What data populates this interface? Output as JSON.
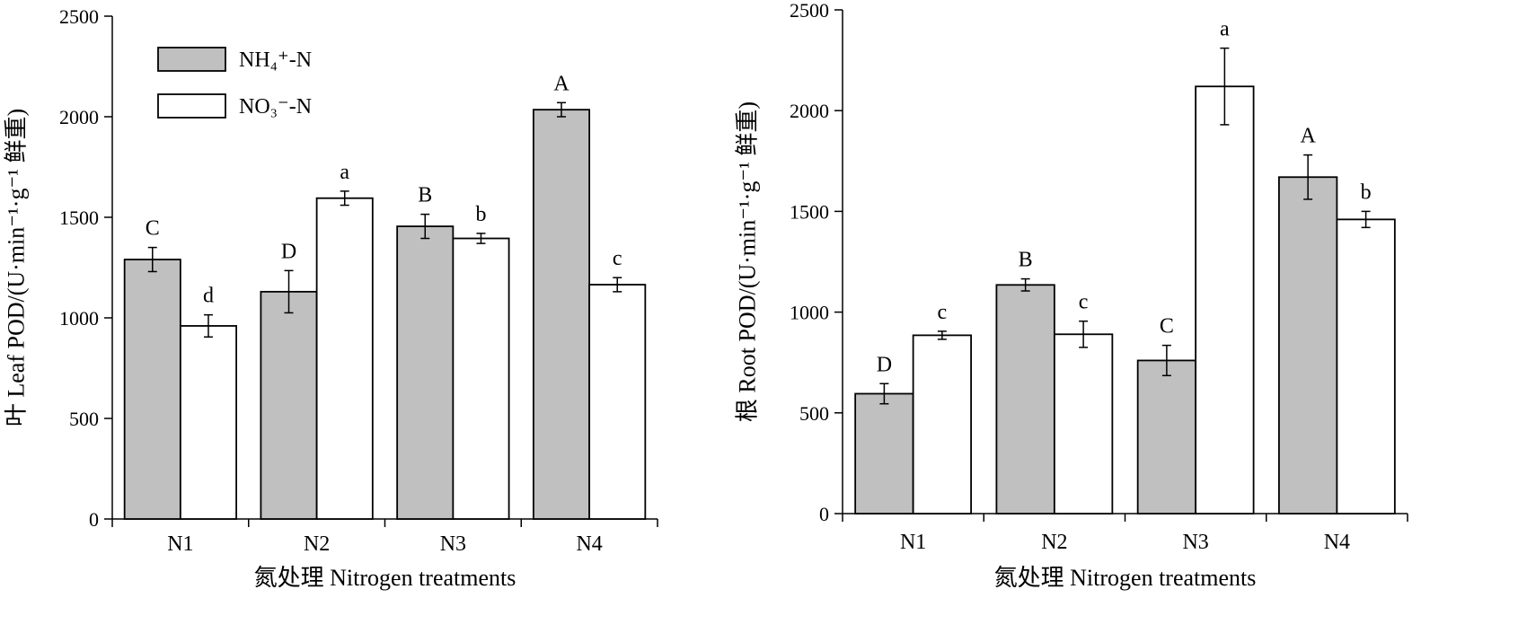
{
  "chart_data": [
    {
      "type": "bar",
      "ylabel": "叶 Leaf POD/(U·min⁻¹·g⁻¹ 鲜重)",
      "xlabel": "氮处理 Nitrogen treatments",
      "ylim": [
        0,
        2500
      ],
      "yticks": [
        0,
        500,
        1000,
        1500,
        2000,
        2500
      ],
      "categories": [
        "N1",
        "N2",
        "N3",
        "N4"
      ],
      "legend_position": "top-left",
      "series": [
        {
          "name": "NH₄⁺-N",
          "color": "#c0c0c0",
          "values": [
            1290,
            1130,
            1455,
            2035
          ],
          "errors": [
            60,
            105,
            60,
            35
          ],
          "labels": [
            "C",
            "D",
            "B",
            "A"
          ]
        },
        {
          "name": "NO₃⁻-N",
          "color": "#ffffff",
          "values": [
            960,
            1595,
            1395,
            1165
          ],
          "errors": [
            55,
            35,
            25,
            35
          ],
          "labels": [
            "d",
            "a",
            "b",
            "c"
          ]
        }
      ]
    },
    {
      "type": "bar",
      "ylabel": "根 Root POD/(U·min⁻¹·g⁻¹ 鲜重)",
      "xlabel": "氮处理 Nitrogen treatments",
      "ylim": [
        0,
        2500
      ],
      "yticks": [
        0,
        500,
        1000,
        1500,
        2000,
        2500
      ],
      "categories": [
        "N1",
        "N2",
        "N3",
        "N4"
      ],
      "series": [
        {
          "name": "NH₄⁺-N",
          "color": "#c0c0c0",
          "values": [
            595,
            1135,
            760,
            1670
          ],
          "errors": [
            50,
            30,
            75,
            110
          ],
          "labels": [
            "D",
            "B",
            "C",
            "A"
          ]
        },
        {
          "name": "NO₃⁻-N",
          "color": "#ffffff",
          "values": [
            885,
            890,
            2120,
            1460
          ],
          "errors": [
            20,
            65,
            190,
            40
          ],
          "labels": [
            "c",
            "c",
            "a",
            "b"
          ]
        }
      ]
    }
  ]
}
